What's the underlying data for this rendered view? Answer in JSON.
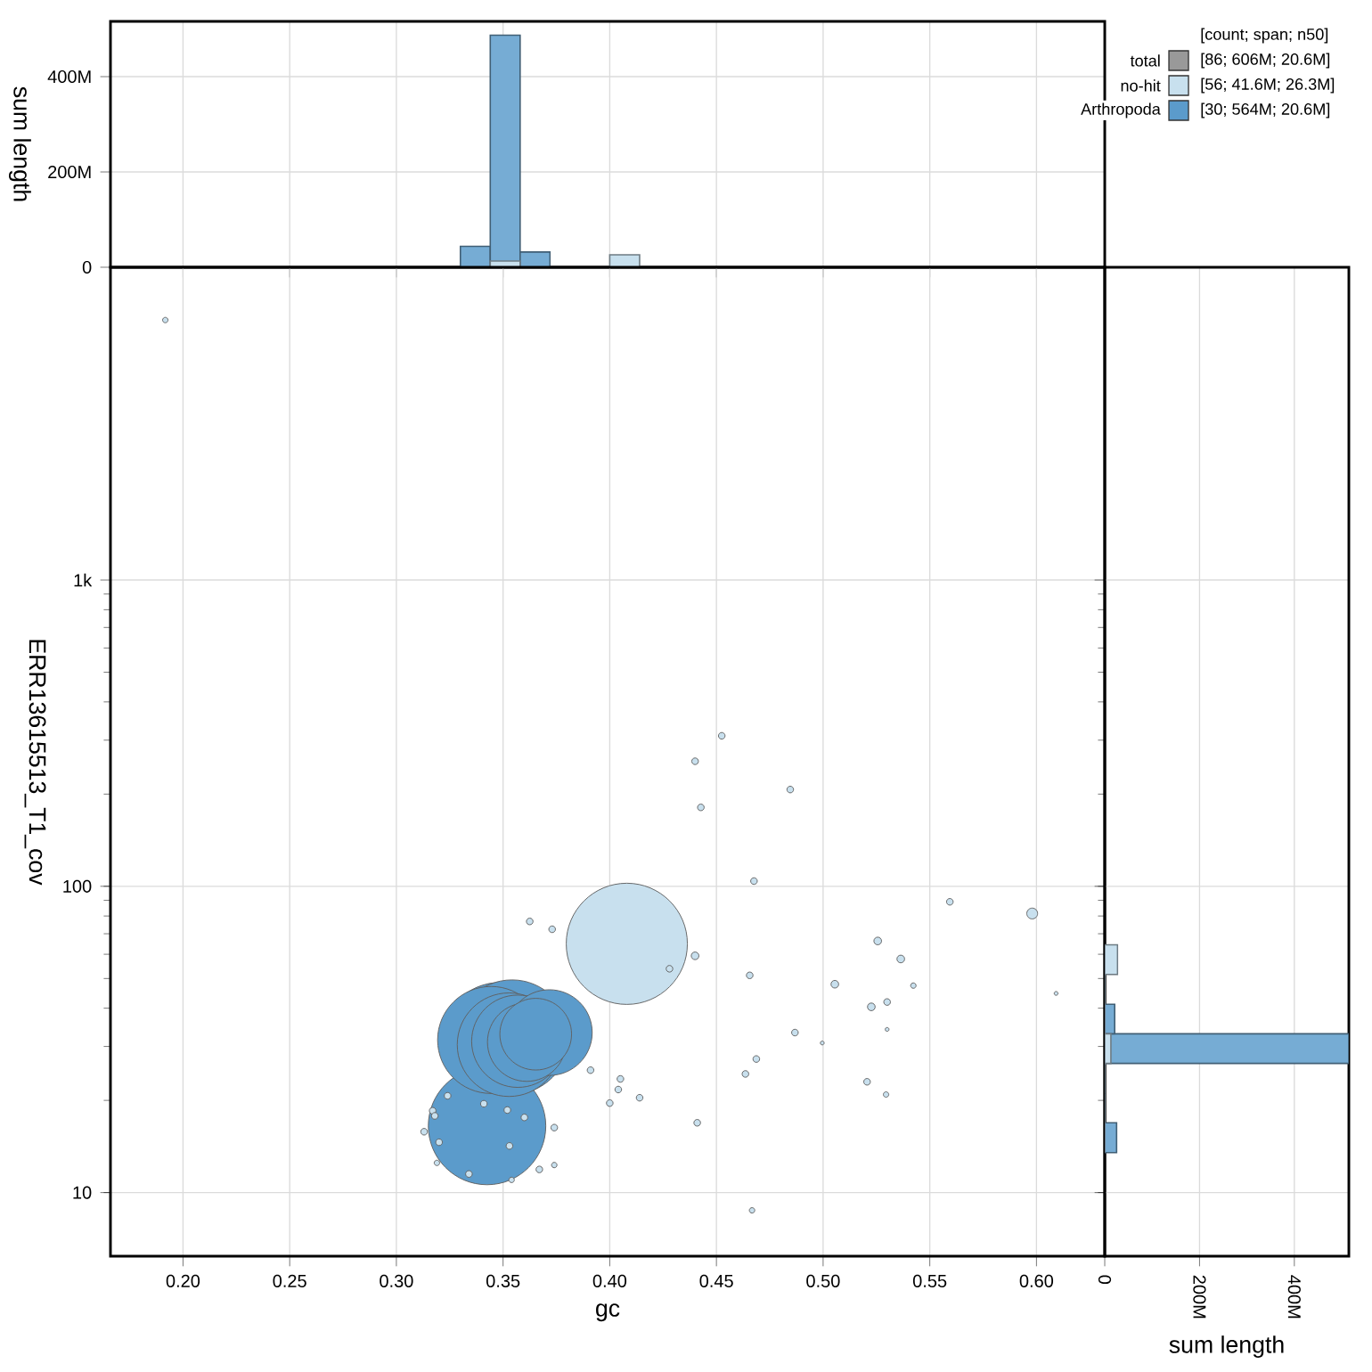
{
  "chart_data": [
    {
      "type": "histogram",
      "ylabel": "sum length",
      "bins": [
        0.33,
        0.344,
        0.358,
        0.372,
        0.386,
        0.4,
        0.414
      ],
      "series": [
        {
          "color": "#76acd4",
          "values": [
            44000000,
            487000000,
            32000000,
            0,
            0,
            0
          ]
        },
        {
          "color": "#c8e0ee",
          "values": [
            0,
            13000000,
            0,
            0,
            0,
            26000000
          ]
        }
      ],
      "xlim": [
        0.166,
        0.632
      ],
      "xticks": [
        {
          "value": 0.2,
          "label": null
        },
        {
          "value": 0.25,
          "label": null
        },
        {
          "value": 0.3,
          "label": null
        },
        {
          "value": 0.35,
          "label": null
        },
        {
          "value": 0.4,
          "label": null
        },
        {
          "value": 0.45,
          "label": null
        },
        {
          "value": 0.5,
          "label": null
        },
        {
          "value": 0.55,
          "label": null
        },
        {
          "value": 0.6,
          "label": null
        }
      ],
      "ylim": [
        0,
        516000000
      ],
      "yticks": [
        0,
        {
          "value": 200000000,
          "label": "200M"
        },
        {
          "value": 400000000,
          "label": "400M"
        }
      ],
      "grid": true,
      "tick_labels": "y"
    },
    {
      "type": "bubble",
      "xlabel": "gc",
      "ylabel": "ERR13615513_T1_cov",
      "legend_title": "[count; span; n50]",
      "marker": "circle",
      "log": "y",
      "grid": true,
      "legend": "top right",
      "annotations": [
        "[86; 606M; 20.6M]",
        "[56; 41.6M; 26.3M]",
        "[30; 564M; 20.6M]"
      ],
      "series": [
        {
          "name": "total",
          "color": "#999999"
        },
        {
          "name": "no-hit",
          "color": "#c8e0ee",
          "x": [
            0.408,
            0.1917,
            0.3625,
            0.373,
            0.44,
            0.428,
            0.391,
            0.405,
            0.404,
            0.4,
            0.414,
            0.441,
            0.324,
            0.317,
            0.318,
            0.341,
            0.352,
            0.36,
            0.313,
            0.374,
            0.32,
            0.353,
            0.319,
            0.334,
            0.374,
            0.367,
            0.354,
            0.4525,
            0.44,
            0.4846,
            0.4427,
            0.4676,
            0.5594,
            0.598,
            0.4656,
            0.5256,
            0.5364,
            0.5055,
            0.5423,
            0.5226,
            0.53,
            0.53,
            0.6092,
            0.4868,
            0.4996,
            0.4687,
            0.4636,
            0.5206,
            0.5295,
            0.4667
          ],
          "values": [
            64.9,
            7060,
            76.8,
            72.4,
            59.3,
            53.8,
            25.1,
            23.5,
            21.7,
            19.6,
            20.4,
            16.9,
            20.7,
            18.5,
            17.8,
            19.5,
            18.6,
            17.6,
            15.8,
            16.3,
            14.6,
            14.2,
            12.5,
            11.5,
            12.3,
            11.9,
            11.0,
            310,
            256,
            207,
            181,
            104,
            89,
            81.5,
            51.2,
            66.3,
            57.9,
            47.9,
            47.4,
            40.4,
            41.9,
            34.1,
            44.7,
            33.3,
            30.8,
            27.3,
            24.4,
            23.0,
            20.9,
            8.75
          ],
          "sizes": [
            1.0,
            0.002,
            0.003,
            0.003,
            0.004,
            0.003,
            0.003,
            0.003,
            0.003,
            0.003,
            0.003,
            0.003,
            0.003,
            0.003,
            0.003,
            0.003,
            0.003,
            0.003,
            0.003,
            0.003,
            0.003,
            0.003,
            0.002,
            0.003,
            0.002,
            0.003,
            0.002,
            0.003,
            0.003,
            0.003,
            0.003,
            0.003,
            0.003,
            0.008,
            0.003,
            0.004,
            0.004,
            0.004,
            0.002,
            0.004,
            0.003,
            0.001,
            0.001,
            0.003,
            0.001,
            0.003,
            0.003,
            0.003,
            0.002,
            0.002
          ]
        },
        {
          "name": "Arthropoda",
          "color": "#5b9bcb",
          "x": [
            0.3486,
            0.3444,
            0.3542,
            0.3528,
            0.3569,
            0.3611,
            0.3653,
            0.3717,
            0.3425
          ],
          "values": [
            31.2,
            31.5,
            32.2,
            30.4,
            31.2,
            31.0,
            32.9,
            33.3,
            16.5
          ],
          "sizes": [
            0.94,
            0.78,
            0.89,
            0.73,
            0.58,
            0.42,
            0.35,
            0.5,
            0.94
          ]
        }
      ],
      "xlim": [
        0.166,
        0.632
      ],
      "xticks": [
        {
          "value": 0.2,
          "label": "0.20"
        },
        {
          "value": 0.25,
          "label": "0.25"
        },
        {
          "value": 0.3,
          "label": "0.30"
        },
        {
          "value": 0.35,
          "label": "0.35"
        },
        {
          "value": 0.4,
          "label": "0.40"
        },
        {
          "value": 0.45,
          "label": "0.45"
        },
        {
          "value": 0.5,
          "label": "0.50"
        },
        {
          "value": 0.55,
          "label": "0.55"
        },
        {
          "value": 0.6,
          "label": "0.60"
        }
      ],
      "ylim": [
        6.2,
        10500
      ],
      "yticks": [
        10,
        100,
        {
          "value": 1000,
          "label": "1k"
        }
      ]
    },
    {
      "type": "histogram",
      "orientation": "horizontal",
      "xlabel": "sum length",
      "log": "y",
      "bins": [
        13.5,
        16.9,
        21.1,
        26.4,
        33.0,
        41.2,
        51.5,
        64.4
      ],
      "series": [
        {
          "color": "#76acd4",
          "values": [
            25000000,
            0,
            0,
            515000000,
            21000000,
            0,
            0
          ]
        },
        {
          "color": "#c8e0ee",
          "values": [
            0,
            0,
            0,
            13000000,
            0,
            0,
            27000000
          ]
        }
      ],
      "xlim": [
        0,
        515000000
      ],
      "xticks": [
        0,
        {
          "value": 200000000,
          "label": "200M"
        },
        {
          "value": 400000000,
          "label": "400M"
        }
      ],
      "ylim": [
        6.2,
        10500
      ],
      "yticks": [
        {
          "value": 10,
          "label": null
        },
        {
          "value": 100,
          "label": null
        },
        {
          "value": 1000,
          "label": null
        }
      ],
      "grid": true,
      "tick_labels": "x"
    }
  ]
}
